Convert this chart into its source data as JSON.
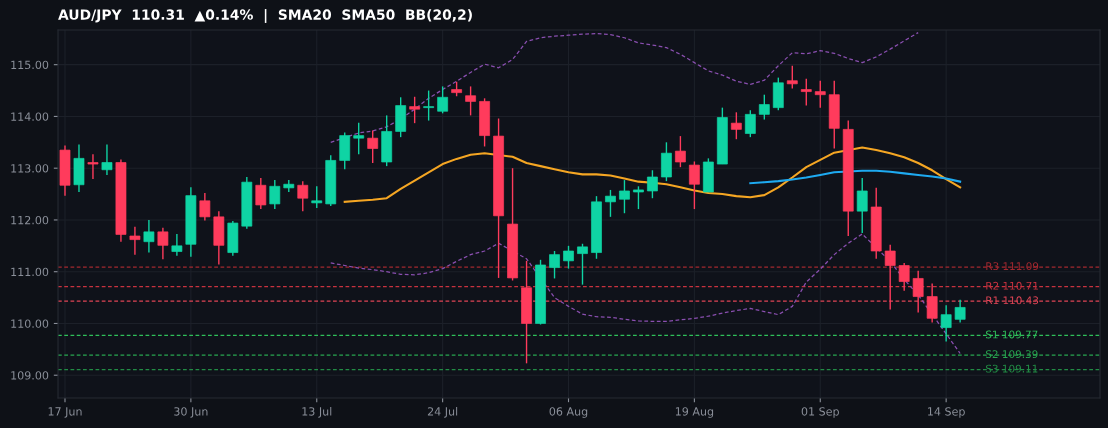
{
  "chart_data": {
    "type": "candlestick",
    "title": "AUD/JPY  110.31  ▲0.14%  |  SMA20  SMA50  BB(20,2)",
    "categories": [
      "17 Jun",
      null,
      null,
      null,
      null,
      null,
      null,
      null,
      null,
      "30 Jun",
      null,
      null,
      null,
      null,
      null,
      null,
      null,
      null,
      "13 Jul",
      null,
      null,
      null,
      null,
      null,
      null,
      null,
      null,
      "24 Jul",
      null,
      null,
      null,
      null,
      null,
      null,
      null,
      null,
      "06 Aug",
      null,
      null,
      null,
      null,
      null,
      null,
      null,
      null,
      "19 Aug",
      null,
      null,
      null,
      null,
      null,
      null,
      null,
      null,
      "01 Sep",
      null,
      null,
      null,
      null,
      null,
      null,
      null,
      null,
      "14 Sep",
      null
    ],
    "ohlc": [
      [
        113.35,
        113.44,
        112.47,
        112.67
      ],
      [
        112.68,
        113.46,
        112.54,
        113.19
      ],
      [
        113.11,
        113.27,
        112.79,
        113.08
      ],
      [
        112.97,
        113.46,
        112.87,
        113.11
      ],
      [
        113.11,
        113.17,
        111.58,
        111.72
      ],
      [
        111.69,
        111.87,
        111.33,
        111.62
      ],
      [
        111.58,
        112.0,
        111.37,
        111.77
      ],
      [
        111.77,
        111.85,
        111.24,
        111.51
      ],
      [
        111.39,
        111.73,
        111.31,
        111.5
      ],
      [
        111.53,
        112.63,
        111.29,
        112.47
      ],
      [
        112.37,
        112.52,
        111.99,
        112.06
      ],
      [
        112.06,
        112.17,
        111.14,
        111.51
      ],
      [
        111.37,
        111.98,
        111.31,
        111.94
      ],
      [
        111.88,
        112.83,
        111.83,
        112.73
      ],
      [
        112.67,
        112.81,
        112.21,
        112.29
      ],
      [
        112.31,
        112.77,
        112.21,
        112.65
      ],
      [
        112.62,
        112.77,
        112.54,
        112.69
      ],
      [
        112.67,
        112.75,
        112.17,
        112.42
      ],
      [
        112.33,
        112.65,
        112.23,
        112.37
      ],
      [
        112.31,
        113.25,
        112.27,
        113.15
      ],
      [
        113.15,
        113.69,
        112.98,
        113.63
      ],
      [
        113.58,
        113.88,
        113.27,
        113.63
      ],
      [
        113.58,
        113.73,
        113.1,
        113.38
      ],
      [
        113.12,
        114.02,
        113.04,
        113.71
      ],
      [
        113.71,
        114.37,
        113.6,
        114.21
      ],
      [
        114.19,
        114.38,
        113.87,
        114.14
      ],
      [
        114.17,
        114.5,
        113.92,
        114.19
      ],
      [
        114.1,
        114.58,
        114.06,
        114.37
      ],
      [
        114.52,
        114.67,
        114.39,
        114.46
      ],
      [
        114.4,
        114.58,
        114.02,
        114.29
      ],
      [
        114.29,
        114.35,
        113.42,
        113.63
      ],
      [
        113.62,
        113.96,
        110.88,
        112.08
      ],
      [
        111.92,
        113.0,
        110.83,
        110.88
      ],
      [
        110.69,
        111.21,
        109.23,
        110.0
      ],
      [
        110.0,
        111.23,
        109.98,
        111.13
      ],
      [
        111.08,
        111.4,
        110.87,
        111.33
      ],
      [
        111.21,
        111.5,
        111.06,
        111.4
      ],
      [
        111.35,
        111.54,
        110.75,
        111.48
      ],
      [
        111.37,
        112.46,
        111.25,
        112.35
      ],
      [
        112.35,
        112.58,
        112.06,
        112.46
      ],
      [
        112.4,
        112.77,
        112.13,
        112.56
      ],
      [
        112.54,
        112.65,
        112.21,
        112.58
      ],
      [
        112.56,
        112.96,
        112.42,
        112.83
      ],
      [
        112.83,
        113.5,
        112.75,
        113.29
      ],
      [
        113.33,
        113.62,
        113.02,
        113.12
      ],
      [
        113.06,
        113.13,
        112.21,
        112.69
      ],
      [
        112.54,
        113.19,
        112.54,
        113.12
      ],
      [
        113.08,
        114.17,
        113.08,
        113.98
      ],
      [
        113.87,
        114.08,
        113.56,
        113.75
      ],
      [
        113.67,
        114.12,
        113.6,
        114.04
      ],
      [
        114.04,
        114.42,
        113.94,
        114.23
      ],
      [
        114.17,
        114.75,
        114.12,
        114.65
      ],
      [
        114.69,
        114.98,
        114.54,
        114.63
      ],
      [
        114.52,
        114.73,
        114.21,
        114.48
      ],
      [
        114.48,
        114.69,
        114.17,
        114.42
      ],
      [
        114.42,
        114.69,
        113.38,
        113.77
      ],
      [
        113.75,
        113.92,
        111.69,
        112.17
      ],
      [
        112.17,
        112.81,
        111.75,
        112.56
      ],
      [
        112.25,
        112.62,
        111.25,
        111.4
      ],
      [
        111.4,
        111.52,
        110.27,
        111.12
      ],
      [
        111.12,
        111.17,
        110.63,
        110.81
      ],
      [
        110.87,
        111.02,
        110.21,
        110.52
      ],
      [
        110.52,
        110.77,
        110.02,
        110.1
      ],
      [
        109.92,
        110.35,
        109.65,
        110.17
      ],
      [
        110.08,
        110.46,
        110.02,
        110.31
      ]
    ],
    "colors": [
      "#ff3b5c",
      "#0fd4a4",
      "#ff3b5c",
      "#0fd4a4",
      "#ff3b5c",
      "#ff3b5c",
      "#0fd4a4",
      "#ff3b5c",
      "#0fd4a4",
      "#0fd4a4",
      "#ff3b5c",
      "#ff3b5c",
      "#0fd4a4",
      "#0fd4a4",
      "#ff3b5c",
      "#0fd4a4",
      "#0fd4a4",
      "#ff3b5c",
      "#0fd4a4",
      "#0fd4a4",
      "#0fd4a4",
      "#0fd4a4",
      "#ff3b5c",
      "#0fd4a4",
      "#0fd4a4",
      "#ff3b5c",
      "#0fd4a4",
      "#0fd4a4",
      "#ff3b5c",
      "#ff3b5c",
      "#ff3b5c",
      "#ff3b5c",
      "#ff3b5c",
      "#ff3b5c",
      "#0fd4a4",
      "#0fd4a4",
      "#0fd4a4",
      "#0fd4a4",
      "#0fd4a4",
      "#0fd4a4",
      "#0fd4a4",
      "#0fd4a4",
      "#0fd4a4",
      "#0fd4a4",
      "#ff3b5c",
      "#ff3b5c",
      "#0fd4a4",
      "#0fd4a4",
      "#ff3b5c",
      "#0fd4a4",
      "#0fd4a4",
      "#0fd4a4",
      "#ff3b5c",
      "#ff3b5c",
      "#ff3b5c",
      "#ff3b5c",
      "#ff3b5c",
      "#0fd4a4",
      "#ff3b5c",
      "#ff3b5c",
      "#ff3b5c",
      "#ff3b5c",
      "#ff3b5c",
      "#0fd4a4",
      "#0fd4a4"
    ],
    "series": [
      {
        "type": "line",
        "color": "#f5a623",
        "line_style": "solid",
        "values": [
          null,
          null,
          null,
          null,
          null,
          null,
          null,
          null,
          null,
          null,
          null,
          null,
          null,
          null,
          null,
          null,
          null,
          null,
          null,
          null,
          112.35,
          112.37,
          112.39,
          112.42,
          112.6,
          112.76,
          112.92,
          113.08,
          113.18,
          113.26,
          113.29,
          null,
          113.22,
          113.1,
          113.04,
          112.98,
          112.92,
          112.88,
          112.88,
          112.86,
          112.8,
          112.74,
          112.72,
          112.69,
          112.63,
          112.57,
          112.52,
          112.5,
          112.46,
          112.44,
          112.48,
          112.63,
          112.82,
          113.02,
          113.16,
          113.3,
          null,
          113.4,
          113.35,
          113.29,
          113.21,
          113.1,
          112.96,
          112.79,
          112.63
        ]
      },
      {
        "type": "line",
        "color": "#1eaaf1",
        "line_style": "solid",
        "values": [
          null,
          null,
          null,
          null,
          null,
          null,
          null,
          null,
          null,
          null,
          null,
          null,
          null,
          null,
          null,
          null,
          null,
          null,
          null,
          null,
          null,
          null,
          null,
          null,
          null,
          null,
          null,
          null,
          null,
          null,
          null,
          null,
          null,
          null,
          null,
          null,
          null,
          null,
          null,
          null,
          null,
          null,
          null,
          null,
          null,
          null,
          null,
          null,
          null,
          112.71,
          112.73,
          112.75,
          112.78,
          112.82,
          112.87,
          112.92,
          null,
          112.95,
          112.95,
          112.93,
          112.9,
          112.87,
          112.84,
          112.8,
          112.74
        ]
      },
      {
        "type": "line",
        "color": "#8a4fb0",
        "line_style": "dashed",
        "values": [
          null,
          null,
          null,
          null,
          null,
          null,
          null,
          null,
          null,
          null,
          null,
          null,
          null,
          null,
          null,
          null,
          null,
          null,
          null,
          113.5,
          null,
          113.68,
          113.72,
          113.8,
          113.95,
          114.14,
          114.35,
          114.52,
          114.68,
          114.85,
          115.01,
          114.94,
          115.1,
          115.45,
          115.52,
          115.55,
          115.57,
          115.59,
          115.6,
          115.58,
          115.52,
          115.42,
          115.38,
          115.33,
          115.2,
          115.04,
          114.88,
          114.8,
          114.68,
          114.62,
          114.7,
          114.98,
          115.23,
          115.21,
          115.27,
          115.22,
          115.12,
          115.04,
          115.15,
          115.3,
          115.46,
          115.62,
          null,
          null,
          null
        ]
      },
      {
        "type": "line",
        "color": "#8a4fb0",
        "line_style": "dashed",
        "values": [
          null,
          null,
          null,
          null,
          null,
          null,
          null,
          null,
          null,
          null,
          null,
          null,
          null,
          null,
          null,
          null,
          null,
          null,
          null,
          111.17,
          111.12,
          111.07,
          111.04,
          111.0,
          110.95,
          110.94,
          110.98,
          111.06,
          111.2,
          111.33,
          111.4,
          111.55,
          null,
          111.25,
          null,
          110.5,
          110.33,
          110.18,
          110.13,
          110.12,
          110.08,
          110.05,
          110.04,
          110.04,
          110.07,
          110.1,
          110.14,
          110.2,
          110.25,
          110.29,
          110.23,
          110.17,
          110.33,
          110.8,
          111.05,
          111.33,
          111.55,
          111.73,
          null,
          111.2,
          110.85,
          110.55,
          null,
          109.8,
          109.42
        ]
      }
    ],
    "ylim": [
      108.56,
      115.67
    ],
    "yticks": [
      {
        "value": 109,
        "label": "109.00"
      },
      {
        "value": 110,
        "label": "110.00"
      },
      {
        "value": 111,
        "label": "111.00"
      },
      {
        "value": 112,
        "label": "112.00"
      },
      {
        "value": 113,
        "label": "113.00"
      },
      {
        "value": 114,
        "label": "114.00"
      },
      {
        "value": 115,
        "label": "115.00"
      }
    ],
    "grid": true,
    "ref_lines": [
      {
        "axis": "y",
        "value": 111.09,
        "label": "R3 111.09",
        "color": "#a3282f",
        "line_style": "dashed"
      },
      {
        "axis": "y",
        "value": 110.71,
        "label": "R2 110.71",
        "color": "#c8323f",
        "line_style": "dashed"
      },
      {
        "axis": "y",
        "value": 110.43,
        "label": "R1 110.43",
        "color": "#e04455",
        "line_style": "dashed"
      },
      {
        "axis": "y",
        "value": 109.77,
        "label": "S1 109.77",
        "color": "#2fbf5a",
        "line_style": "dashed"
      },
      {
        "axis": "y",
        "value": 109.39,
        "label": "S2 109.39",
        "color": "#28a650",
        "line_style": "dashed"
      },
      {
        "axis": "y",
        "value": 109.11,
        "label": "S3 109.11",
        "color": "#228c45",
        "line_style": "dashed"
      }
    ]
  }
}
